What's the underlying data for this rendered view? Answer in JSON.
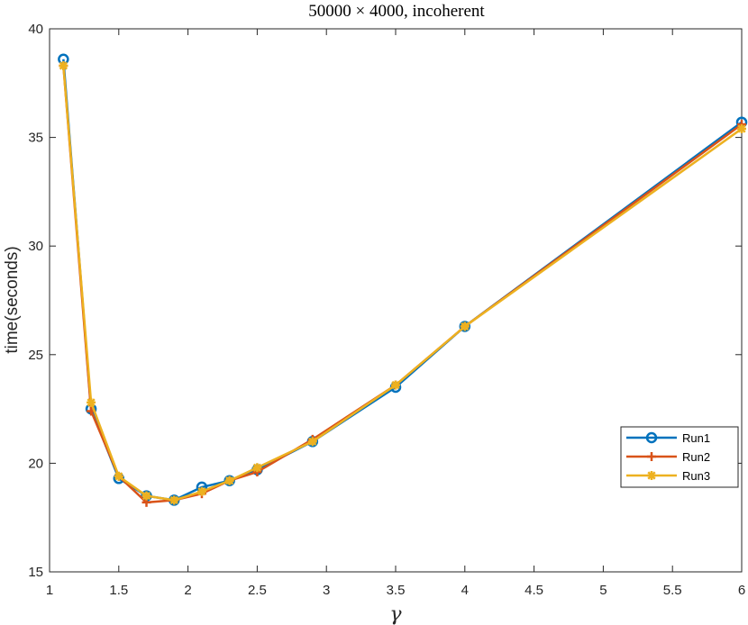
{
  "chart_data": {
    "type": "line",
    "title": "50000 × 4000, incoherent",
    "xlabel": "γ",
    "ylabel": "time(seconds)",
    "xlim": [
      1,
      6
    ],
    "ylim": [
      15,
      40
    ],
    "xticks": [
      1,
      1.5,
      2,
      2.5,
      3,
      3.5,
      4,
      4.5,
      5,
      5.5,
      6
    ],
    "xtick_labels": [
      "1",
      "1.5",
      "2",
      "2.5",
      "3",
      "3.5",
      "4",
      "4.5",
      "5",
      "5.5",
      "6"
    ],
    "yticks": [
      15,
      20,
      25,
      30,
      35,
      40
    ],
    "ytick_labels": [
      "15",
      "20",
      "25",
      "30",
      "35",
      "40"
    ],
    "grid": false,
    "legend_position": "right",
    "series": [
      {
        "name": "Run1",
        "color": "#0072BD",
        "marker": "circle",
        "x": [
          1.1,
          1.3,
          1.5,
          1.7,
          1.9,
          2.1,
          2.3,
          2.5,
          2.9,
          3.5,
          4,
          6
        ],
        "y": [
          38.6,
          22.5,
          19.3,
          18.5,
          18.3,
          18.9,
          19.2,
          19.7,
          21.0,
          23.5,
          26.3,
          35.7
        ]
      },
      {
        "name": "Run2",
        "color": "#D95319",
        "marker": "plus",
        "x": [
          1.1,
          1.3,
          1.5,
          1.7,
          1.9,
          2.1,
          2.3,
          2.5,
          2.9,
          3.5,
          4,
          6
        ],
        "y": [
          38.3,
          22.4,
          19.4,
          18.2,
          18.3,
          18.6,
          19.2,
          19.6,
          21.1,
          23.6,
          26.3,
          35.6
        ]
      },
      {
        "name": "Run3",
        "color": "#EDB120",
        "marker": "asterisk",
        "x": [
          1.1,
          1.3,
          1.5,
          1.7,
          1.9,
          2.1,
          2.3,
          2.5,
          2.9,
          3.5,
          4,
          6
        ],
        "y": [
          38.3,
          22.8,
          19.4,
          18.5,
          18.3,
          18.7,
          19.2,
          19.8,
          21.0,
          23.6,
          26.3,
          35.4
        ]
      }
    ]
  }
}
